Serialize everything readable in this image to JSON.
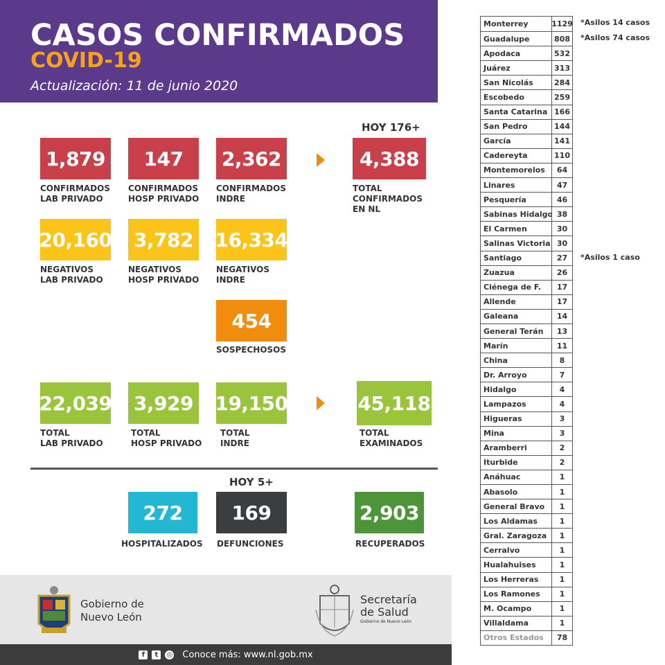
{
  "header": {
    "title": "CASOS CONFIRMADOS",
    "subtitle": "COVID-19",
    "updated": "Actualización: 11 de junio 2020"
  },
  "confirmados": {
    "hoy": "HOY 176+",
    "lab_privado": {
      "value": "1,879",
      "label1": "CONFIRMADOS",
      "label2": "LAB PRIVADO"
    },
    "hosp_privado": {
      "value": "147",
      "label1": "CONFIRMADOS",
      "label2": "HOSP PRIVADO"
    },
    "indre": {
      "value": "2,362",
      "label1": "CONFIRMADOS",
      "label2": "INDRE"
    },
    "total": {
      "value": "4,388",
      "label1": "TOTAL",
      "label2": "CONFIRMADOS",
      "label3": "EN NL"
    }
  },
  "negativos": {
    "lab_privado": {
      "value": "20,160",
      "label1": "NEGATIVOS",
      "label2": "LAB PRIVADO"
    },
    "hosp_privado": {
      "value": "3,782",
      "label1": "NEGATIVOS",
      "label2": "HOSP PRIVADO"
    },
    "indre": {
      "value": "16,334",
      "label1": "NEGATIVOS",
      "label2": "INDRE"
    }
  },
  "sospechosos": {
    "value": "454",
    "label": "SOSPECHOSOS"
  },
  "totales": {
    "lab_privado": {
      "value": "22,039",
      "label1": "TOTAL",
      "label2": "LAB PRIVADO"
    },
    "hosp_privado": {
      "value": "3,929",
      "label1": "TOTAL",
      "label2": "HOSP PRIVADO"
    },
    "indre": {
      "value": "19,150",
      "label1": "TOTAL",
      "label2": "INDRE"
    },
    "examinados": {
      "value": "45,118",
      "label1": "TOTAL",
      "label2": "EXAMINADOS"
    }
  },
  "estado": {
    "hoy": "HOY 5+",
    "hospitalizados": {
      "value": "272",
      "label": "HOSPITALIZADOS"
    },
    "defunciones": {
      "value": "169",
      "label": "DEFUNCIONES"
    },
    "recuperados": {
      "value": "2,903",
      "label": "RECUPERADOS"
    }
  },
  "footer": {
    "gobierno_line1": "Gobierno de",
    "gobierno_line2": "Nuevo León",
    "salud_line1": "Secretaría",
    "salud_line2": "de Salud",
    "salud_small": "Gobierno de Nuevo León",
    "bar_text": "Conoce más: www.nl.gob.mx"
  },
  "municipios": [
    {
      "name": "Monterrey",
      "value": "1129"
    },
    {
      "name": "Guadalupe",
      "value": "808"
    },
    {
      "name": "Apodaca",
      "value": "532"
    },
    {
      "name": "Juárez",
      "value": "313"
    },
    {
      "name": "San Nicolás",
      "value": "284"
    },
    {
      "name": "Escobedo",
      "value": "259"
    },
    {
      "name": "Santa Catarina",
      "value": "166"
    },
    {
      "name": "San Pedro",
      "value": "144"
    },
    {
      "name": "García",
      "value": "141"
    },
    {
      "name": "Cadereyta",
      "value": "110"
    },
    {
      "name": "Montemorelos",
      "value": "64"
    },
    {
      "name": "Linares",
      "value": "47"
    },
    {
      "name": "Pesquería",
      "value": "46"
    },
    {
      "name": "Sabinas Hidalgo",
      "value": "38"
    },
    {
      "name": "El Carmen",
      "value": "30"
    },
    {
      "name": "Salinas Victoria",
      "value": "30"
    },
    {
      "name": "Santiago",
      "value": "27"
    },
    {
      "name": "Zuazua",
      "value": "26"
    },
    {
      "name": "Ciénega de F.",
      "value": "17"
    },
    {
      "name": "Allende",
      "value": "17"
    },
    {
      "name": "Galeana",
      "value": "14"
    },
    {
      "name": "General Terán",
      "value": "13"
    },
    {
      "name": "Marín",
      "value": "11"
    },
    {
      "name": "China",
      "value": "8"
    },
    {
      "name": "Dr. Arroyo",
      "value": "7"
    },
    {
      "name": "Hidalgo",
      "value": "4"
    },
    {
      "name": "Lampazos",
      "value": "4"
    },
    {
      "name": "Higueras",
      "value": "3"
    },
    {
      "name": "Mina",
      "value": "3"
    },
    {
      "name": "Aramberri",
      "value": "2"
    },
    {
      "name": "Iturbide",
      "value": "2"
    },
    {
      "name": "Anáhuac",
      "value": "1"
    },
    {
      "name": "Abasolo",
      "value": "1"
    },
    {
      "name": "General Bravo",
      "value": "1"
    },
    {
      "name": "Los Aldamas",
      "value": "1"
    },
    {
      "name": "Gral. Zaragoza",
      "value": "1"
    },
    {
      "name": "Cerralvo",
      "value": "1"
    },
    {
      "name": "Hualahuises",
      "value": "1"
    },
    {
      "name": "Los Herreras",
      "value": "1"
    },
    {
      "name": "Los Ramones",
      "value": "1"
    },
    {
      "name": "M. Ocampo",
      "value": "1"
    },
    {
      "name": "Villaldama",
      "value": "1"
    },
    {
      "name": "Otros Estados",
      "value": "78"
    }
  ],
  "notes": {
    "monterrey": "*Asilos 14 casos",
    "guadalupe": "*Asilos 74 casos",
    "santiago": "*Asilos 1 caso"
  }
}
